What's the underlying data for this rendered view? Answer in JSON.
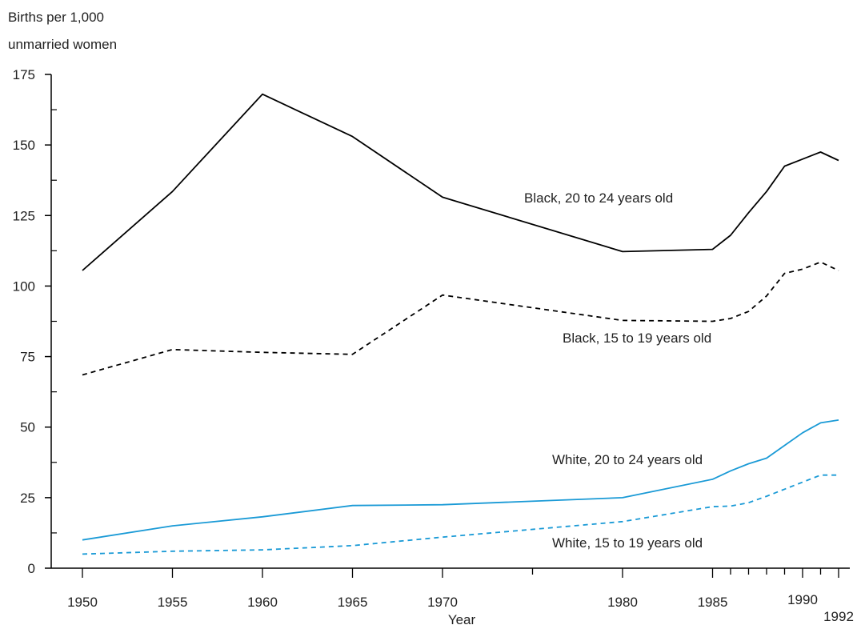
{
  "chart_data": {
    "type": "line",
    "ylabel_line1": "Births per 1,000",
    "ylabel_line2": "unmarried women",
    "xlabel": "Year",
    "ylim": [
      0,
      175
    ],
    "yticks": [
      0,
      25,
      50,
      75,
      100,
      125,
      150,
      175
    ],
    "xlim": [
      1950,
      1992
    ],
    "xticks_labeled": [
      "1950",
      "1955",
      "1960",
      "1965",
      "1970",
      "1980",
      "1985",
      "1990",
      "1992"
    ],
    "grid": false,
    "colors": {
      "black": "#000000",
      "blue": "#1a9ad6"
    },
    "series": [
      {
        "name": "Black, 20 to 24  years old",
        "color": "#000000",
        "dash": "solid",
        "x": [
          1950,
          1955,
          1960,
          1965,
          1970,
          1980,
          1985,
          1986,
          1987,
          1988,
          1989,
          1990,
          1991,
          1992
        ],
        "values": [
          105.5,
          133.5,
          168.0,
          153.0,
          131.5,
          112.2,
          113.0,
          118.0,
          126.0,
          133.5,
          142.5,
          145.0,
          147.5,
          144.5
        ]
      },
      {
        "name": "Black, 15 to 19 years old",
        "color": "#000000",
        "dash": "dashed",
        "x": [
          1950,
          1955,
          1960,
          1965,
          1970,
          1980,
          1985,
          1986,
          1987,
          1988,
          1989,
          1990,
          1991,
          1992
        ],
        "values": [
          68.5,
          77.5,
          76.5,
          75.8,
          96.8,
          87.8,
          87.5,
          88.5,
          91.0,
          96.5,
          104.5,
          106.0,
          108.5,
          105.5
        ]
      },
      {
        "name": "White, 20 to 24 years old",
        "color": "#1a9ad6",
        "dash": "solid",
        "x": [
          1950,
          1955,
          1960,
          1965,
          1970,
          1980,
          1985,
          1986,
          1987,
          1988,
          1989,
          1990,
          1991,
          1992
        ],
        "values": [
          10.0,
          15.0,
          18.2,
          22.2,
          22.5,
          25.0,
          31.5,
          34.5,
          37.0,
          39.0,
          43.5,
          48.0,
          51.5,
          52.5
        ]
      },
      {
        "name": "White, 15 to 19 years old",
        "color": "#1a9ad6",
        "dash": "dashed",
        "x": [
          1950,
          1955,
          1960,
          1965,
          1970,
          1980,
          1985,
          1986,
          1987,
          1988,
          1989,
          1990,
          1991,
          1992
        ],
        "values": [
          5.0,
          6.0,
          6.5,
          8.0,
          11.0,
          16.5,
          21.8,
          22.0,
          23.2,
          25.5,
          28.0,
          30.5,
          33.0,
          33.0
        ]
      }
    ]
  }
}
